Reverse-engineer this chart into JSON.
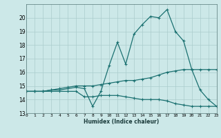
{
  "xlabel": "Humidex (Indice chaleur)",
  "x": [
    0,
    1,
    2,
    3,
    4,
    5,
    6,
    7,
    8,
    9,
    10,
    11,
    12,
    13,
    14,
    15,
    16,
    17,
    18,
    19,
    20,
    21,
    22,
    23
  ],
  "line_max": [
    14.6,
    14.6,
    14.6,
    14.7,
    14.7,
    14.8,
    14.9,
    14.8,
    13.5,
    14.6,
    16.5,
    18.2,
    16.6,
    18.8,
    19.5,
    20.1,
    20.0,
    20.6,
    19.0,
    18.3,
    16.2,
    14.7,
    14.0,
    13.5
  ],
  "line_mean": [
    14.6,
    14.6,
    14.6,
    14.7,
    14.8,
    14.9,
    15.0,
    15.0,
    15.0,
    15.1,
    15.2,
    15.3,
    15.4,
    15.4,
    15.5,
    15.6,
    15.8,
    16.0,
    16.1,
    16.2,
    16.2,
    16.2,
    16.2,
    16.2
  ],
  "line_min": [
    14.6,
    14.6,
    14.6,
    14.6,
    14.6,
    14.6,
    14.6,
    14.2,
    14.2,
    14.3,
    14.3,
    14.3,
    14.2,
    14.1,
    14.0,
    14.0,
    14.0,
    13.9,
    13.7,
    13.6,
    13.5,
    13.5,
    13.5,
    13.5
  ],
  "color": "#1a7070",
  "bg_color": "#cce8e8",
  "grid_color": "#aacccc",
  "ylim": [
    13,
    21
  ],
  "yticks": [
    13,
    14,
    15,
    16,
    17,
    18,
    19,
    20
  ],
  "xlim": [
    0,
    23
  ]
}
